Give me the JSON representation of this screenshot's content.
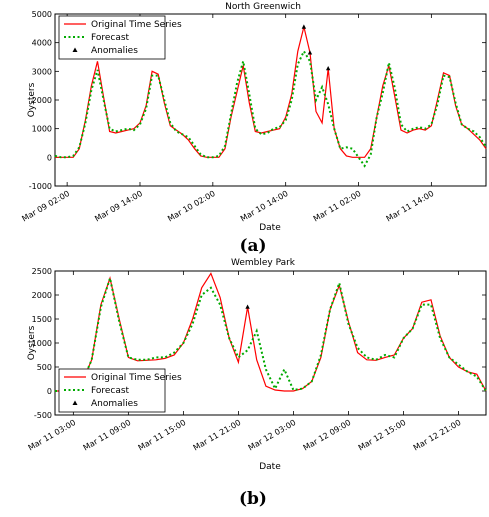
{
  "chart_data": [
    {
      "type": "line",
      "title": "North Greenwich",
      "xlabel": "Date",
      "ylabel": "Oysters",
      "panel_label": "(a)",
      "ylim": [
        -1000,
        5000
      ],
      "yticks": [
        -1000,
        0,
        1000,
        2000,
        3000,
        4000,
        5000
      ],
      "xlim": [
        "Mar 09 00:00",
        "Mar 11 23:00"
      ],
      "xtick_labels": [
        "Mar 09 02:00",
        "Mar 09 14:00",
        "Mar 10 02:00",
        "Mar 10 14:00",
        "Mar 11 02:00",
        "Mar 11 14:00"
      ],
      "grid": false,
      "legend_position": "top-left",
      "legend": [
        "Original Time Series",
        "Forecast",
        "Anomalies"
      ],
      "colors": {
        "original": "#ff0000",
        "forecast": "#00aa00",
        "anomalies": "#000000"
      },
      "x": [
        "Mar 09 00:00",
        "Mar 09 01:00",
        "Mar 09 02:00",
        "Mar 09 03:00",
        "Mar 09 04:00",
        "Mar 09 05:00",
        "Mar 09 06:00",
        "Mar 09 07:00",
        "Mar 09 08:00",
        "Mar 09 09:00",
        "Mar 09 10:00",
        "Mar 09 11:00",
        "Mar 09 12:00",
        "Mar 09 13:00",
        "Mar 09 14:00",
        "Mar 09 15:00",
        "Mar 09 16:00",
        "Mar 09 17:00",
        "Mar 09 18:00",
        "Mar 09 19:00",
        "Mar 09 20:00",
        "Mar 09 21:00",
        "Mar 09 22:00",
        "Mar 09 23:00",
        "Mar 10 00:00",
        "Mar 10 01:00",
        "Mar 10 02:00",
        "Mar 10 03:00",
        "Mar 10 04:00",
        "Mar 10 05:00",
        "Mar 10 06:00",
        "Mar 10 07:00",
        "Mar 10 08:00",
        "Mar 10 09:00",
        "Mar 10 10:00",
        "Mar 10 11:00",
        "Mar 10 12:00",
        "Mar 10 13:00",
        "Mar 10 14:00",
        "Mar 10 15:00",
        "Mar 10 16:00",
        "Mar 10 17:00",
        "Mar 10 18:00",
        "Mar 10 19:00",
        "Mar 10 20:00",
        "Mar 10 21:00",
        "Mar 10 22:00",
        "Mar 10 23:00",
        "Mar 11 00:00",
        "Mar 11 01:00",
        "Mar 11 02:00",
        "Mar 11 03:00",
        "Mar 11 04:00",
        "Mar 11 05:00",
        "Mar 11 06:00",
        "Mar 11 07:00",
        "Mar 11 08:00",
        "Mar 11 09:00",
        "Mar 11 10:00",
        "Mar 11 11:00",
        "Mar 11 12:00",
        "Mar 11 13:00",
        "Mar 11 14:00",
        "Mar 11 15:00",
        "Mar 11 16:00",
        "Mar 11 17:00",
        "Mar 11 18:00",
        "Mar 11 19:00",
        "Mar 11 20:00",
        "Mar 11 21:00",
        "Mar 11 22:00",
        "Mar 11 23:00"
      ],
      "series": [
        {
          "name": "Original Time Series",
          "values": [
            0,
            0,
            0,
            0,
            300,
            1300,
            2500,
            3350,
            2100,
            900,
            850,
            900,
            950,
            1000,
            1200,
            1800,
            3000,
            2900,
            1900,
            1100,
            950,
            800,
            600,
            300,
            50,
            0,
            0,
            0,
            300,
            1400,
            2300,
            3200,
            1900,
            900,
            850,
            900,
            950,
            1000,
            1400,
            2200,
            3700,
            4550,
            3650,
            1600,
            1200,
            3100,
            1000,
            300,
            50,
            0,
            0,
            0,
            300,
            1400,
            2500,
            3200,
            2100,
            950,
            850,
            950,
            1000,
            950,
            1100,
            2000,
            2950,
            2850,
            1800,
            1150,
            1000,
            800,
            600,
            300
          ]
        },
        {
          "name": "Forecast",
          "values": [
            50,
            0,
            0,
            50,
            350,
            1200,
            2350,
            3050,
            2000,
            1000,
            900,
            950,
            1000,
            950,
            1150,
            1700,
            2850,
            2850,
            2000,
            1200,
            900,
            800,
            700,
            400,
            100,
            0,
            0,
            50,
            400,
            1500,
            2600,
            3350,
            2200,
            1000,
            800,
            850,
            1000,
            1050,
            1300,
            2000,
            3250,
            3700,
            3350,
            2000,
            2450,
            1850,
            1000,
            300,
            350,
            300,
            0,
            -300,
            100,
            1400,
            2250,
            3300,
            2400,
            1150,
            900,
            1000,
            1050,
            1000,
            1150,
            1850,
            2850,
            2800,
            1900,
            1150,
            1000,
            900,
            700,
            350
          ]
        }
      ],
      "anomalies": [
        {
          "x": "Mar 10 17:00",
          "y": 4550
        },
        {
          "x": "Mar 10 18:00",
          "y": 3650
        },
        {
          "x": "Mar 10 21:00",
          "y": 3100
        }
      ]
    },
    {
      "type": "line",
      "title": "Wembley Park",
      "xlabel": "Date",
      "ylabel": "Oysters",
      "panel_label": "(b)",
      "ylim": [
        -500,
        2500
      ],
      "yticks": [
        -500,
        0,
        500,
        1000,
        1500,
        2000,
        2500
      ],
      "xlim": [
        "Mar 11 01:00",
        "Mar 13 00:00"
      ],
      "xtick_labels": [
        "Mar 11 03:00",
        "Mar 11 09:00",
        "Mar 11 15:00",
        "Mar 11 21:00",
        "Mar 12 03:00",
        "Mar 12 09:00",
        "Mar 12 15:00",
        "Mar 12 21:00"
      ],
      "grid": false,
      "legend_position": "bottom-left",
      "legend": [
        "Original Time Series",
        "Forecast",
        "Anomalies"
      ],
      "colors": {
        "original": "#ff0000",
        "forecast": "#00aa00",
        "anomalies": "#000000"
      },
      "x": [
        "Mar 11 01:00",
        "Mar 11 02:00",
        "Mar 11 03:00",
        "Mar 11 04:00",
        "Mar 11 05:00",
        "Mar 11 06:00",
        "Mar 11 07:00",
        "Mar 11 08:00",
        "Mar 11 09:00",
        "Mar 11 10:00",
        "Mar 11 11:00",
        "Mar 11 12:00",
        "Mar 11 13:00",
        "Mar 11 14:00",
        "Mar 11 15:00",
        "Mar 11 16:00",
        "Mar 11 17:00",
        "Mar 11 18:00",
        "Mar 11 19:00",
        "Mar 11 20:00",
        "Mar 11 21:00",
        "Mar 11 22:00",
        "Mar 11 23:00",
        "Mar 12 00:00",
        "Mar 12 01:00",
        "Mar 12 02:00",
        "Mar 12 03:00",
        "Mar 12 04:00",
        "Mar 12 05:00",
        "Mar 12 06:00",
        "Mar 12 07:00",
        "Mar 12 08:00",
        "Mar 12 09:00",
        "Mar 12 10:00",
        "Mar 12 11:00",
        "Mar 12 12:00",
        "Mar 12 13:00",
        "Mar 12 14:00",
        "Mar 12 15:00",
        "Mar 12 16:00",
        "Mar 12 17:00",
        "Mar 12 18:00",
        "Mar 12 19:00",
        "Mar 12 20:00",
        "Mar 12 21:00",
        "Mar 12 22:00",
        "Mar 12 23:00",
        "Mar 13 00:00"
      ],
      "series": [
        {
          "name": "Original Time Series",
          "values": [
            0,
            0,
            50,
            200,
            650,
            1800,
            2350,
            1500,
            700,
            630,
            640,
            650,
            680,
            750,
            1000,
            1500,
            2150,
            2450,
            1950,
            1100,
            600,
            1750,
            650,
            100,
            20,
            0,
            0,
            50,
            200,
            700,
            1700,
            2200,
            1450,
            800,
            650,
            640,
            700,
            750,
            1100,
            1300,
            1850,
            1900,
            1150,
            700,
            500,
            400,
            350,
            0
          ]
        },
        {
          "name": "Forecast",
          "values": [
            0,
            0,
            50,
            200,
            650,
            1750,
            2350,
            1450,
            700,
            650,
            650,
            700,
            700,
            800,
            1000,
            1400,
            2000,
            2150,
            1800,
            1100,
            700,
            850,
            1250,
            450,
            50,
            450,
            20,
            50,
            200,
            750,
            1700,
            2250,
            1400,
            900,
            700,
            650,
            750,
            700,
            1100,
            1300,
            1800,
            1800,
            1100,
            700,
            550,
            400,
            300,
            0
          ]
        }
      ],
      "anomalies": [
        {
          "x": "Mar 11 22:00",
          "y": 1750
        }
      ]
    }
  ]
}
